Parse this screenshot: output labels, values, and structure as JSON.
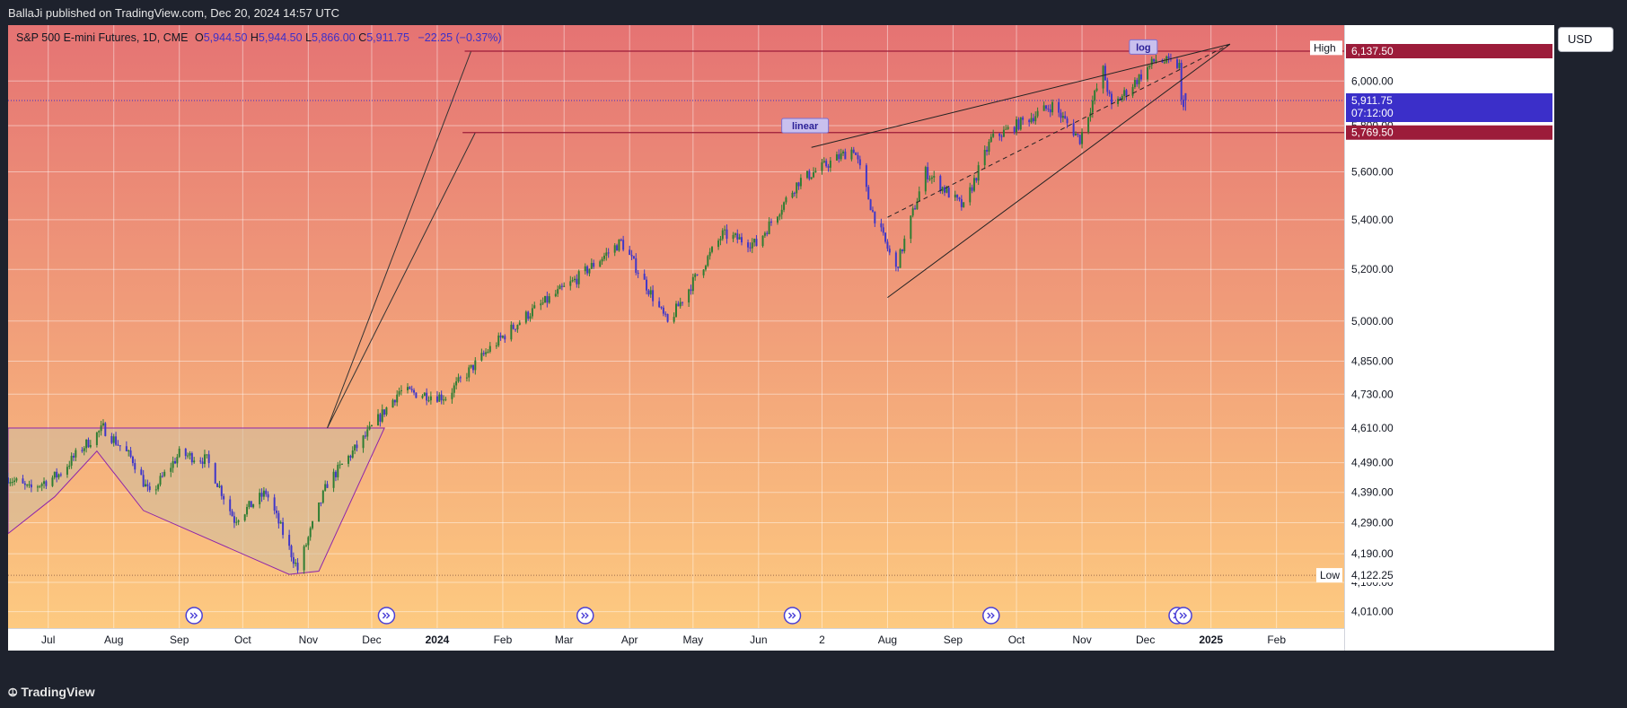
{
  "header": {
    "published": "BallaJi published on TradingView.com, Dec 20, 2024 14:57 UTC"
  },
  "legend": {
    "symbol": "S&P 500 E-mini Futures, 1D, CME",
    "o_label": "O",
    "o": "5,944.50",
    "h_label": "H",
    "h": "5,944.50",
    "l_label": "L",
    "l": "5,866.00",
    "c_label": "C",
    "c": "5,911.75",
    "change": "−22.25 (−0.37%)"
  },
  "currency_button": "USD",
  "footer": {
    "brand": "TradingView"
  },
  "colors": {
    "bg_top": "#e57373",
    "bg_bottom": "#fdca80",
    "up": "#2e7d32",
    "down": "#3f36c9",
    "accent": "#3b2fc9",
    "line_red": "#9c1c3a"
  },
  "chart_data": {
    "type": "candlestick",
    "log_scale": true,
    "symbol": "S&P 500 E-mini Futures",
    "interval": "1D",
    "y_ticks": [
      "6,000.00",
      "5,800.00",
      "5,600.00",
      "5,400.00",
      "5,200.00",
      "5,000.00",
      "4,850.00",
      "4,730.00",
      "4,610.00",
      "4,490.00",
      "4,390.00",
      "4,290.00",
      "4,190.00",
      "4,100.00",
      "4,010.00"
    ],
    "y_tick_values": [
      6000,
      5800,
      5600,
      5400,
      5200,
      5000,
      4850,
      4730,
      4610,
      4490,
      4390,
      4290,
      4190,
      4100,
      4010
    ],
    "ylim": [
      3960,
      6260
    ],
    "x_labels": [
      {
        "label": "Jul",
        "date": "2023-07-01",
        "bold": false
      },
      {
        "label": "Aug",
        "date": "2023-08-01",
        "bold": false
      },
      {
        "label": "Sep",
        "date": "2023-09-01",
        "bold": false
      },
      {
        "label": "Oct",
        "date": "2023-10-01",
        "bold": false
      },
      {
        "label": "Nov",
        "date": "2023-11-01",
        "bold": false
      },
      {
        "label": "Dec",
        "date": "2023-12-01",
        "bold": false
      },
      {
        "label": "2024",
        "date": "2024-01-01",
        "bold": true
      },
      {
        "label": "Feb",
        "date": "2024-02-01",
        "bold": false
      },
      {
        "label": "Mar",
        "date": "2024-03-01",
        "bold": false
      },
      {
        "label": "Apr",
        "date": "2024-04-01",
        "bold": false
      },
      {
        "label": "May",
        "date": "2024-05-01",
        "bold": false
      },
      {
        "label": "Jun",
        "date": "2024-06-01",
        "bold": false
      },
      {
        "label": "2",
        "date": "2024-07-01",
        "bold": false
      },
      {
        "label": "Aug",
        "date": "2024-08-01",
        "bold": false
      },
      {
        "label": "Sep",
        "date": "2024-09-01",
        "bold": false
      },
      {
        "label": "Oct",
        "date": "2024-10-01",
        "bold": false
      },
      {
        "label": "Nov",
        "date": "2024-11-01",
        "bold": false
      },
      {
        "label": "Dec",
        "date": "2024-12-01",
        "bold": false
      },
      {
        "label": "2025",
        "date": "2025-01-01",
        "bold": true
      },
      {
        "label": "Feb",
        "date": "2025-02-01",
        "bold": false
      }
    ],
    "xlim": [
      "2023-06-12",
      "2025-03-05"
    ],
    "price_path": [
      {
        "date": "2023-06-12",
        "close": 4440
      },
      {
        "date": "2023-06-22",
        "close": 4400
      },
      {
        "date": "2023-07-06",
        "close": 4450
      },
      {
        "date": "2023-07-17",
        "close": 4540
      },
      {
        "date": "2023-07-27",
        "close": 4610
      },
      {
        "date": "2023-08-10",
        "close": 4500
      },
      {
        "date": "2023-08-18",
        "close": 4380
      },
      {
        "date": "2023-09-01",
        "close": 4520
      },
      {
        "date": "2023-09-14",
        "close": 4500
      },
      {
        "date": "2023-09-27",
        "close": 4300
      },
      {
        "date": "2023-10-12",
        "close": 4390
      },
      {
        "date": "2023-10-27",
        "close": 4140
      },
      {
        "date": "2023-11-10",
        "close": 4420
      },
      {
        "date": "2023-11-28",
        "close": 4580
      },
      {
        "date": "2023-12-14",
        "close": 4740
      },
      {
        "date": "2024-01-05",
        "close": 4720
      },
      {
        "date": "2024-01-25",
        "close": 4890
      },
      {
        "date": "2024-02-12",
        "close": 5020
      },
      {
        "date": "2024-03-05",
        "close": 5150
      },
      {
        "date": "2024-03-28",
        "close": 5310
      },
      {
        "date": "2024-04-19",
        "close": 4990
      },
      {
        "date": "2024-05-15",
        "close": 5340
      },
      {
        "date": "2024-05-31",
        "close": 5300
      },
      {
        "date": "2024-06-20",
        "close": 5560
      },
      {
        "date": "2024-07-16",
        "close": 5700
      },
      {
        "date": "2024-07-25",
        "close": 5430
      },
      {
        "date": "2024-08-05",
        "close": 5200
      },
      {
        "date": "2024-08-19",
        "close": 5600
      },
      {
        "date": "2024-09-06",
        "close": 5450
      },
      {
        "date": "2024-09-19",
        "close": 5740
      },
      {
        "date": "2024-10-18",
        "close": 5890
      },
      {
        "date": "2024-10-31",
        "close": 5740
      },
      {
        "date": "2024-11-11",
        "close": 6050
      },
      {
        "date": "2024-11-15",
        "close": 5880
      },
      {
        "date": "2024-12-06",
        "close": 6100
      },
      {
        "date": "2024-12-17",
        "close": 6070
      },
      {
        "date": "2024-12-18",
        "close": 5900
      },
      {
        "date": "2024-12-20",
        "close": 5911.75
      }
    ],
    "ohlc_last": {
      "open": 5944.5,
      "high": 5944.5,
      "low": 5866.0,
      "close": 5911.75
    },
    "horizontal_levels": [
      {
        "price": 6137.5,
        "label": "6,137.50",
        "from": "2024-01-14"
      },
      {
        "price": 5769.5,
        "label": "5,769.50",
        "from": "2024-01-13"
      }
    ],
    "high_marker": {
      "label": "High",
      "price": 6152.75,
      "value": "6,152.75"
    },
    "low_marker": {
      "label": "Low",
      "price": 4122.25,
      "value": "4,122.25"
    },
    "last_price": {
      "price": 5911.75,
      "value": "5,911.75",
      "countdown": "07:12:00"
    },
    "annotations": [
      {
        "text": "log",
        "date": "2024-11-30",
        "price": 6157
      },
      {
        "text": "linear",
        "date": "2024-06-23",
        "price": 5800
      }
    ],
    "pattern_polygon": [
      {
        "date": "2023-06-12",
        "price": 4255
      },
      {
        "date": "2023-07-04",
        "price": 4375
      },
      {
        "date": "2023-07-24",
        "price": 4530
      },
      {
        "date": "2023-08-15",
        "price": 4330
      },
      {
        "date": "2023-10-23",
        "price": 4125
      },
      {
        "date": "2023-11-06",
        "price": 4135
      },
      {
        "date": "2023-12-07",
        "price": 4610
      },
      {
        "date": "2023-06-12",
        "price": 4610
      }
    ],
    "pattern_trend_lines": [
      {
        "from": {
          "date": "2023-11-10",
          "price": 4610
        },
        "to": {
          "date": "2024-01-17",
          "price": 6137.5
        }
      },
      {
        "from": {
          "date": "2023-11-10",
          "price": 4610
        },
        "to": {
          "date": "2024-01-19",
          "price": 5769.5
        }
      }
    ],
    "wedge_lines": [
      {
        "from": {
          "date": "2024-06-26",
          "price": 5705
        },
        "to": {
          "date": "2025-01-10",
          "price": 6170
        },
        "style": "solid"
      },
      {
        "from": {
          "date": "2024-08-01",
          "price": 5090
        },
        "to": {
          "date": "2025-01-10",
          "price": 6170
        },
        "style": "solid"
      },
      {
        "from": {
          "date": "2024-08-01",
          "price": 5410
        },
        "to": {
          "date": "2025-01-10",
          "price": 6170
        },
        "style": "dashed"
      }
    ],
    "event_markers": [
      "2023-09-08",
      "2023-12-08",
      "2024-03-11",
      "2024-06-17",
      "2024-09-19",
      "2024-12-16",
      "2024-12-19"
    ]
  }
}
